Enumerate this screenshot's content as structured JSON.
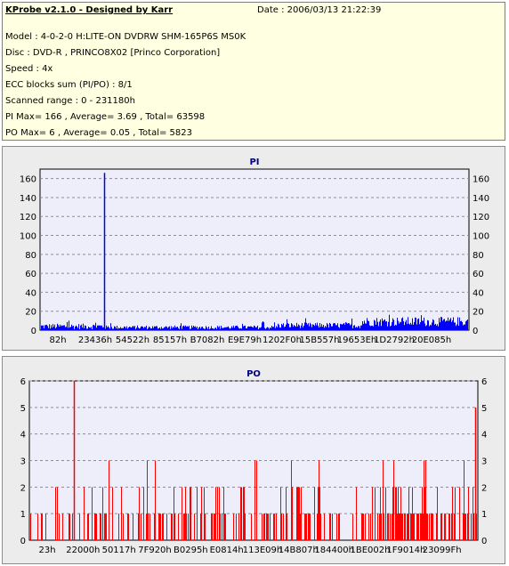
{
  "info": {
    "title": "KProbe v2.1.0 - Designed by Karr",
    "date": "Date : 2006/03/13 21:22:39",
    "lines": [
      "Model : 4-0-2-0 H:LITE-ON DVDRW SHM-165P6S MS0K",
      "Disc : DVD-R , PRINCO8X02 [Princo Corporation]",
      "Speed : 4x",
      "ECC blocks sum (PI/PO) : 8/1",
      "Scanned range : 0 - 231180h",
      "PI Max= 166 , Average= 3.69 , Total= 63598",
      "PO Max= 6 , Average= 0.05 , Total= 5823"
    ]
  },
  "chart_data": [
    {
      "type": "bar",
      "title": "PI",
      "ylim": [
        0,
        170
      ],
      "yticks": [
        0,
        20,
        40,
        60,
        80,
        100,
        120,
        140,
        160
      ],
      "grid": true,
      "xticks": [
        "82h",
        "23436h",
        "54522h",
        "85157h",
        "B7082h",
        "E9E79h",
        "1202F0h",
        "15B557h",
        "19653Eh",
        "1D2792h",
        "20E085h"
      ],
      "color": "#0000ff",
      "max": 166,
      "average": 3.69,
      "spike_position": 0.15
    },
    {
      "type": "bar",
      "title": "PO",
      "ylim": [
        0,
        6
      ],
      "yticks": [
        0,
        1,
        2,
        3,
        4,
        5,
        6
      ],
      "grid": true,
      "xticks": [
        "23h",
        "22000h",
        "50117h",
        "7F920h",
        "B0295h",
        "E0814h",
        "113E09h",
        "14B807h",
        "184400h",
        "1BE002h",
        "1F9014h",
        "23099Fh"
      ],
      "color": "#ff0000",
      "max": 6,
      "average": 0.05
    }
  ]
}
